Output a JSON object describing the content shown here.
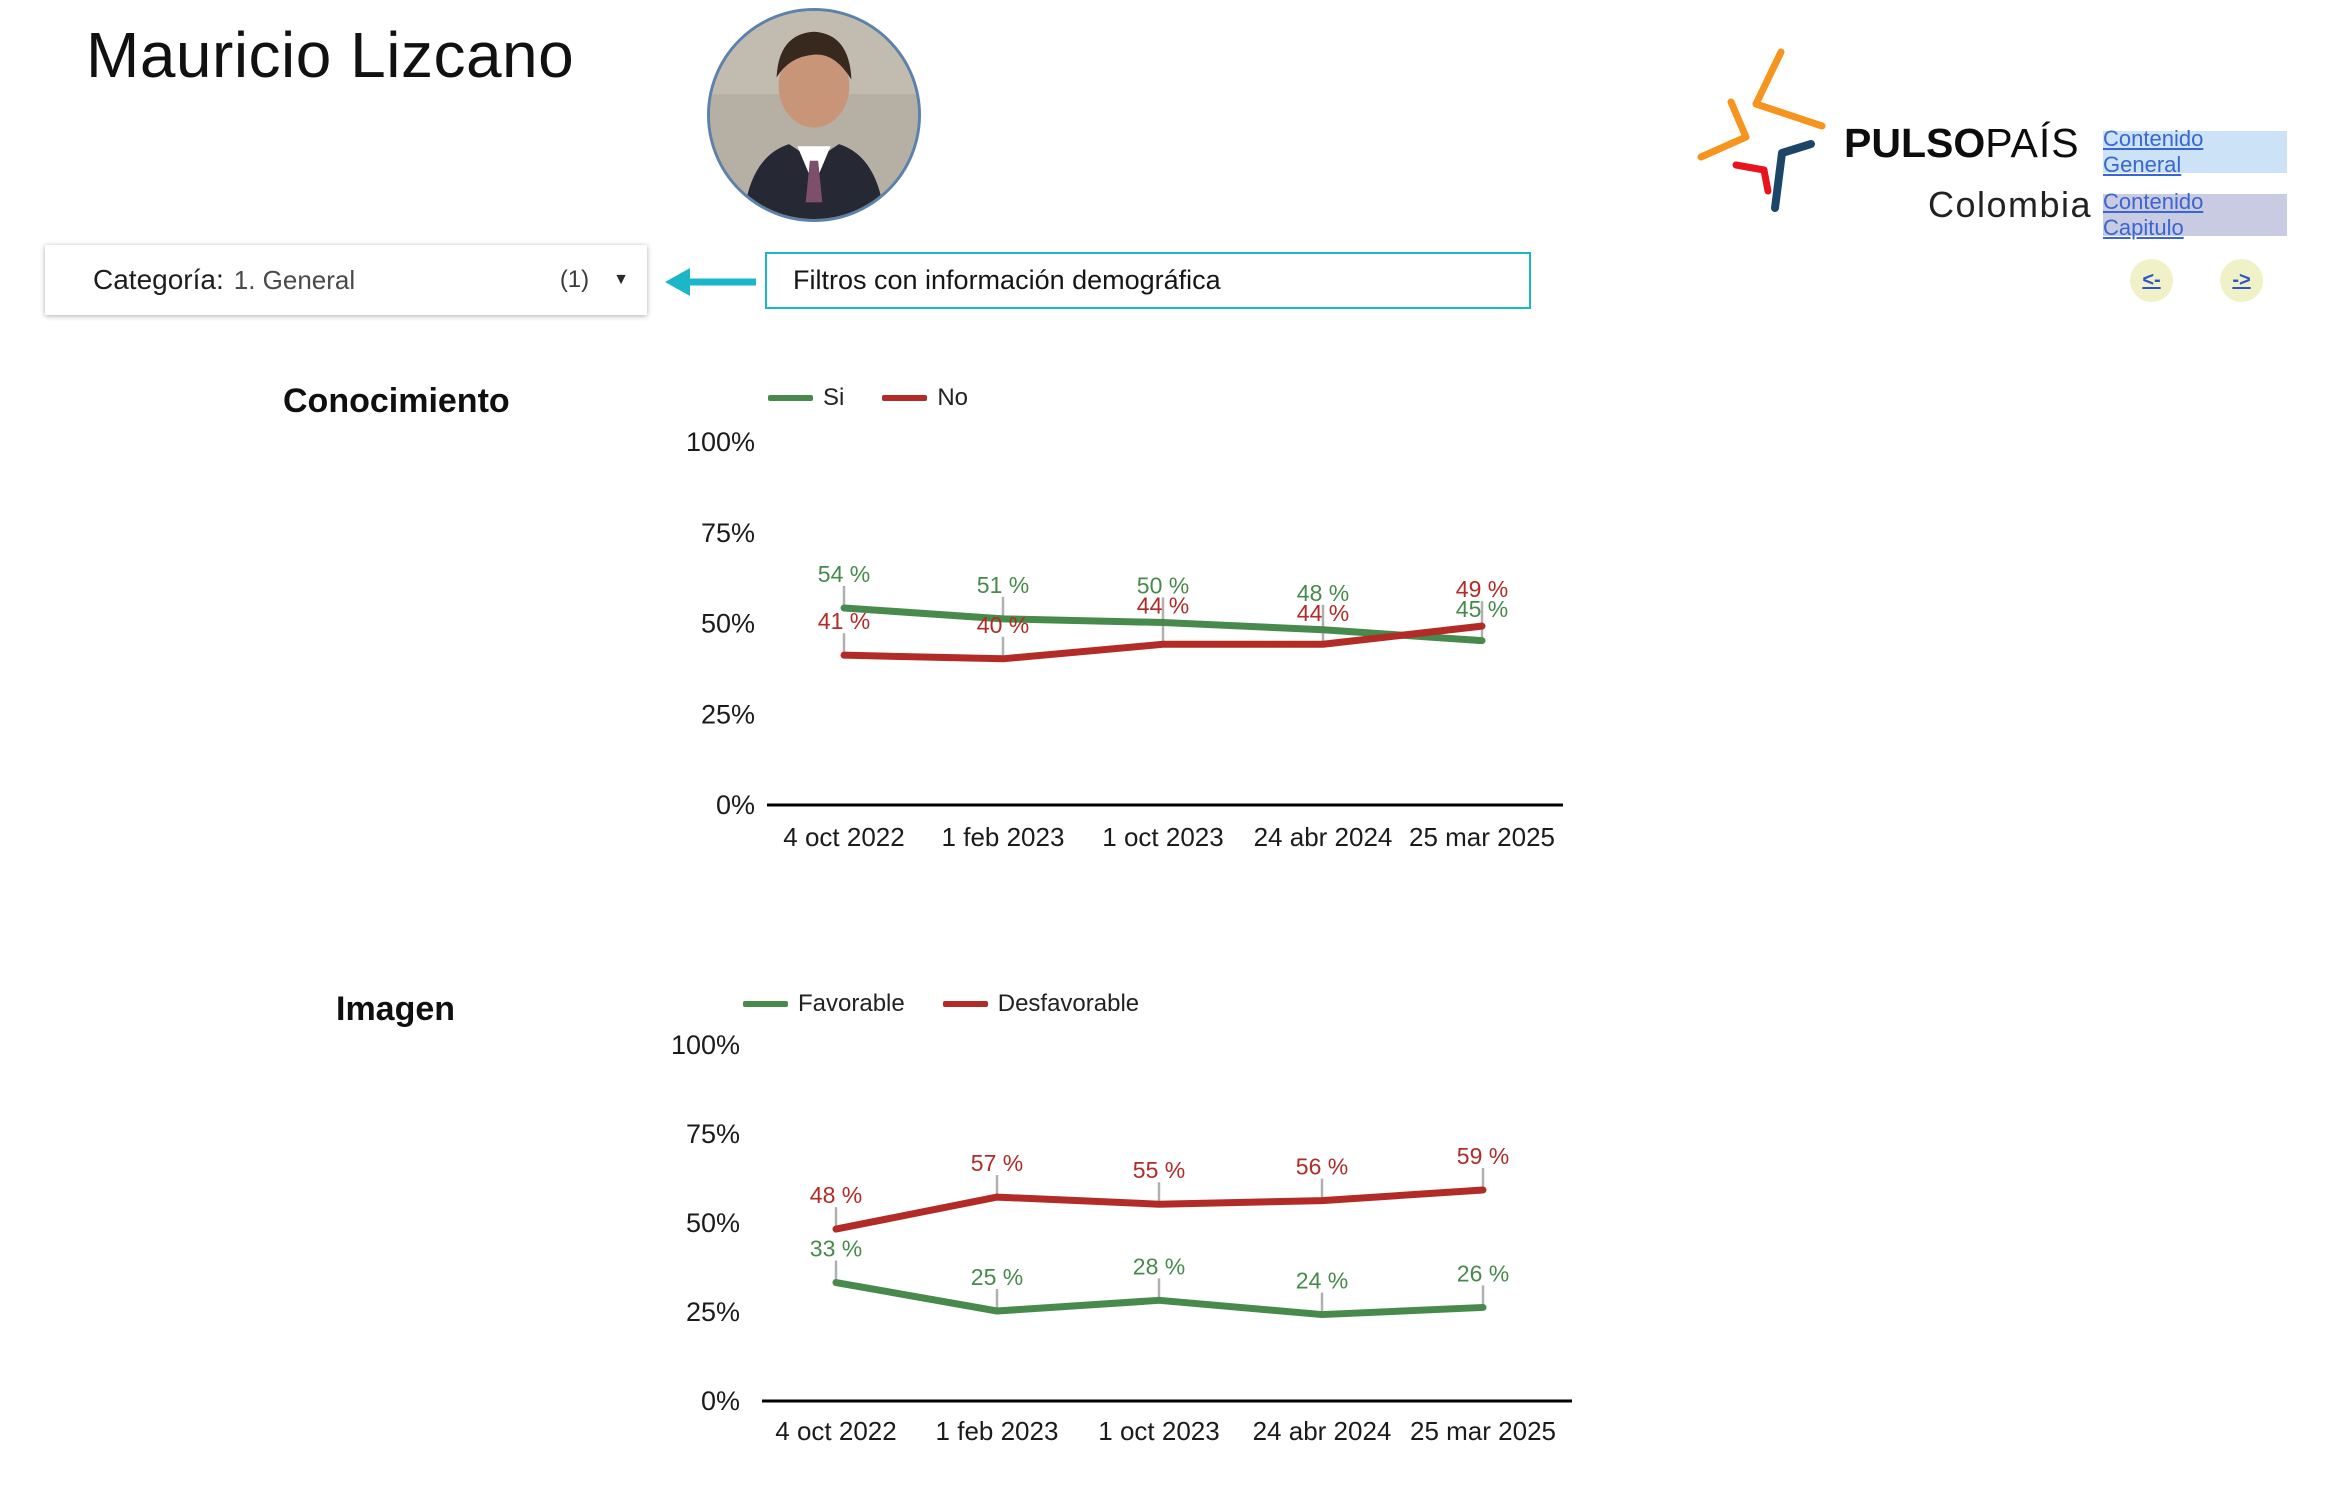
{
  "page": {
    "title": "Mauricio Lizcano"
  },
  "brand": {
    "wordmark_bold": "PULSO",
    "wordmark_light": "PAÍS",
    "country": "Colombia",
    "colors": {
      "orange": "#F7941D",
      "red": "#E8131D",
      "navy": "#1C4568"
    }
  },
  "nav": {
    "contenido_general": "Contenido General",
    "contenido_capitulo": "Contenido Capitulo",
    "prev_label": "<-",
    "next_label": "->"
  },
  "filter_bar": {
    "category_label": "Categoría:",
    "category_value": "1. General",
    "category_count": "(1)",
    "annotation": "Filtros con información demográfica",
    "accent_color": "#1BB7C8"
  },
  "chart_data": [
    {
      "type": "line",
      "title": "Conocimiento",
      "categories": [
        "4 oct 2022",
        "1 feb 2023",
        "1 oct 2023",
        "24 abr 2024",
        "25 mar 2025"
      ],
      "series": [
        {
          "name": "Si",
          "color": "#478A4C",
          "values": [
            54,
            51,
            50,
            48,
            45
          ]
        },
        {
          "name": "No",
          "color": "#B22B27",
          "values": [
            41,
            40,
            44,
            44,
            49
          ]
        }
      ],
      "ylim": [
        0,
        100
      ],
      "yticks": [
        0,
        25,
        50,
        75,
        100
      ],
      "ytick_suffix": "%",
      "value_suffix": " %",
      "legend_position": "top",
      "grid": false
    },
    {
      "type": "line",
      "title": "Imagen",
      "categories": [
        "4 oct 2022",
        "1 feb 2023",
        "1 oct 2023",
        "24 abr 2024",
        "25 mar 2025"
      ],
      "series": [
        {
          "name": "Favorable",
          "color": "#478A4C",
          "values": [
            33,
            25,
            28,
            24,
            26
          ]
        },
        {
          "name": "Desfavorable",
          "color": "#B22B27",
          "values": [
            48,
            57,
            55,
            56,
            59
          ]
        }
      ],
      "ylim": [
        0,
        100
      ],
      "yticks": [
        0,
        25,
        50,
        75,
        100
      ],
      "ytick_suffix": "%",
      "value_suffix": " %",
      "legend_position": "top",
      "grid": false
    }
  ]
}
